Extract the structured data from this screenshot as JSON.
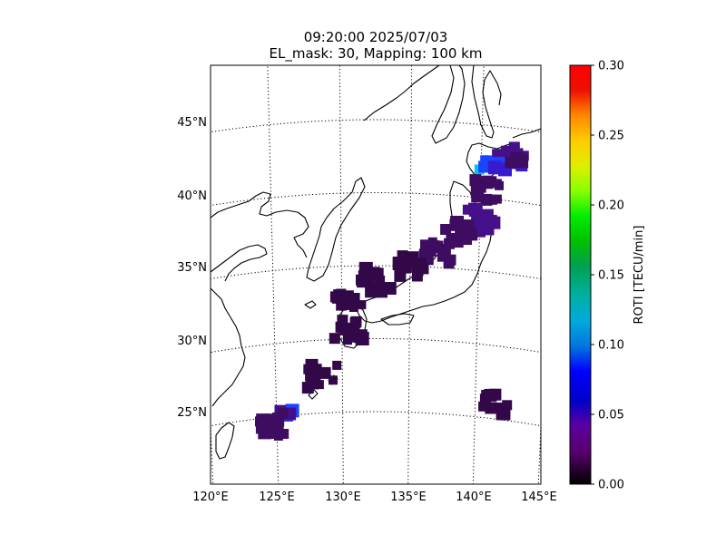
{
  "title": {
    "line1": "09:20:00 2025/07/03",
    "line2": "EL_mask: 30, Mapping: 100 km"
  },
  "map": {
    "lon_ticks": [
      "120°E",
      "125°E",
      "130°E",
      "135°E",
      "140°E",
      "145°E"
    ],
    "lat_ticks": [
      "25°N",
      "30°N",
      "35°N",
      "40°N",
      "45°N"
    ],
    "lon_range": [
      120,
      145
    ],
    "lat_range": [
      20,
      49
    ],
    "graticule": "dotted",
    "region": "Japan / East Asia"
  },
  "colorbar": {
    "label": "ROTI [TECU/min]",
    "ticks": [
      "0.00",
      "0.05",
      "0.10",
      "0.15",
      "0.20",
      "0.25",
      "0.30"
    ],
    "range": [
      0,
      0.3
    ],
    "colormap": "nipy_spectral"
  },
  "roti_clusters": [
    {
      "lon": 142.0,
      "lat": 43.0,
      "value": 0.05
    },
    {
      "lon": 140.3,
      "lat": 42.3,
      "value": 0.12
    },
    {
      "lon": 141.2,
      "lat": 42.4,
      "value": 0.1
    },
    {
      "lon": 142.6,
      "lat": 42.6,
      "value": 0.07
    },
    {
      "lon": 140.5,
      "lat": 40.5,
      "value": 0.04
    },
    {
      "lon": 140.0,
      "lat": 38.5,
      "value": 0.05
    },
    {
      "lon": 138.5,
      "lat": 37.5,
      "value": 0.04
    },
    {
      "lon": 137.0,
      "lat": 36.0,
      "value": 0.04
    },
    {
      "lon": 135.0,
      "lat": 35.0,
      "value": 0.03
    },
    {
      "lon": 132.5,
      "lat": 34.0,
      "value": 0.03
    },
    {
      "lon": 130.5,
      "lat": 32.5,
      "value": 0.03
    },
    {
      "lon": 130.5,
      "lat": 30.5,
      "value": 0.03
    },
    {
      "lon": 128.5,
      "lat": 27.5,
      "value": 0.03
    },
    {
      "lon": 125.7,
      "lat": 25.2,
      "value": 0.09
    },
    {
      "lon": 124.5,
      "lat": 24.5,
      "value": 0.04
    },
    {
      "lon": 141.5,
      "lat": 26.0,
      "value": 0.03
    }
  ],
  "colors": {
    "background": "#ffffff",
    "coastline": "#000000",
    "base_roti": "#3a0a4e"
  }
}
